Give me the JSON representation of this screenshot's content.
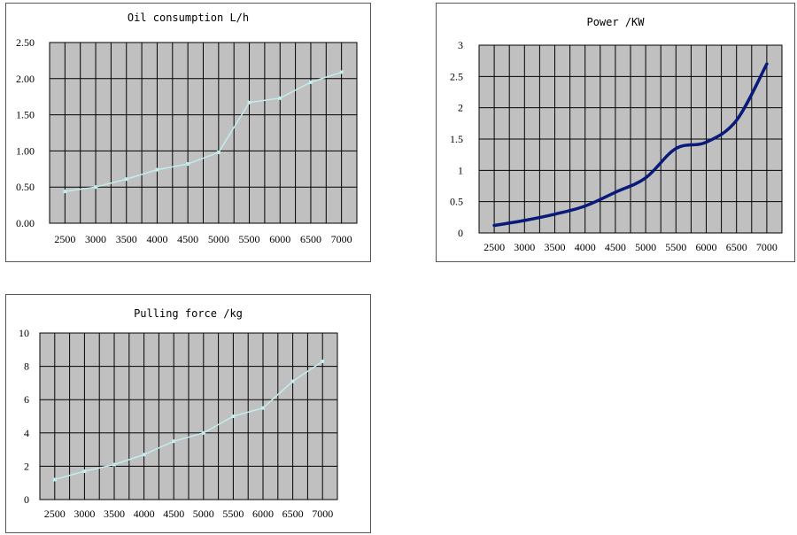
{
  "colors": {
    "plot_bg": "#c0c0c0",
    "grid": "#000000",
    "light_series": "#c4ecec",
    "dark_series": "#0a1a7a"
  },
  "chart_data": [
    {
      "type": "line",
      "title": "Oil consumption L/h",
      "xlabel": "",
      "ylabel": "",
      "categories": [
        "2500",
        "3000",
        "3500",
        "4000",
        "4500",
        "5000",
        "5500",
        "6000",
        "6500",
        "7000"
      ],
      "series": [
        {
          "values": [
            0.44,
            0.5,
            0.61,
            0.74,
            0.82,
            0.98,
            1.67,
            1.73,
            1.95,
            2.09
          ]
        }
      ],
      "ylim": [
        0,
        2.5
      ],
      "yticks": [
        "0.00",
        "0.50",
        "1.00",
        "1.50",
        "2.00",
        "2.50"
      ],
      "grid": true,
      "legend": "none"
    },
    {
      "type": "line",
      "title": "Power /KW",
      "xlabel": "",
      "ylabel": "",
      "categories": [
        "2500",
        "3000",
        "3500",
        "4000",
        "4500",
        "5000",
        "5500",
        "6000",
        "6500",
        "7000"
      ],
      "series": [
        {
          "values": [
            0.12,
            0.2,
            0.3,
            0.43,
            0.65,
            0.88,
            1.35,
            1.45,
            1.8,
            2.7
          ]
        }
      ],
      "ylim": [
        0,
        3
      ],
      "yticks": [
        "0",
        "0.5",
        "1",
        "1.5",
        "2",
        "2.5",
        "3"
      ],
      "grid": true,
      "legend": "none"
    },
    {
      "type": "line",
      "title": "Pulling force /kg",
      "xlabel": "",
      "ylabel": "",
      "categories": [
        "2500",
        "3000",
        "3500",
        "4000",
        "4500",
        "5000",
        "5500",
        "6000",
        "6500",
        "7000"
      ],
      "series": [
        {
          "values": [
            1.2,
            1.7,
            2.1,
            2.7,
            3.5,
            4.0,
            5.0,
            5.5,
            7.1,
            8.3
          ]
        }
      ],
      "ylim": [
        0,
        10
      ],
      "yticks": [
        "0",
        "2",
        "4",
        "6",
        "8",
        "10"
      ],
      "grid": true,
      "legend": "none"
    }
  ]
}
